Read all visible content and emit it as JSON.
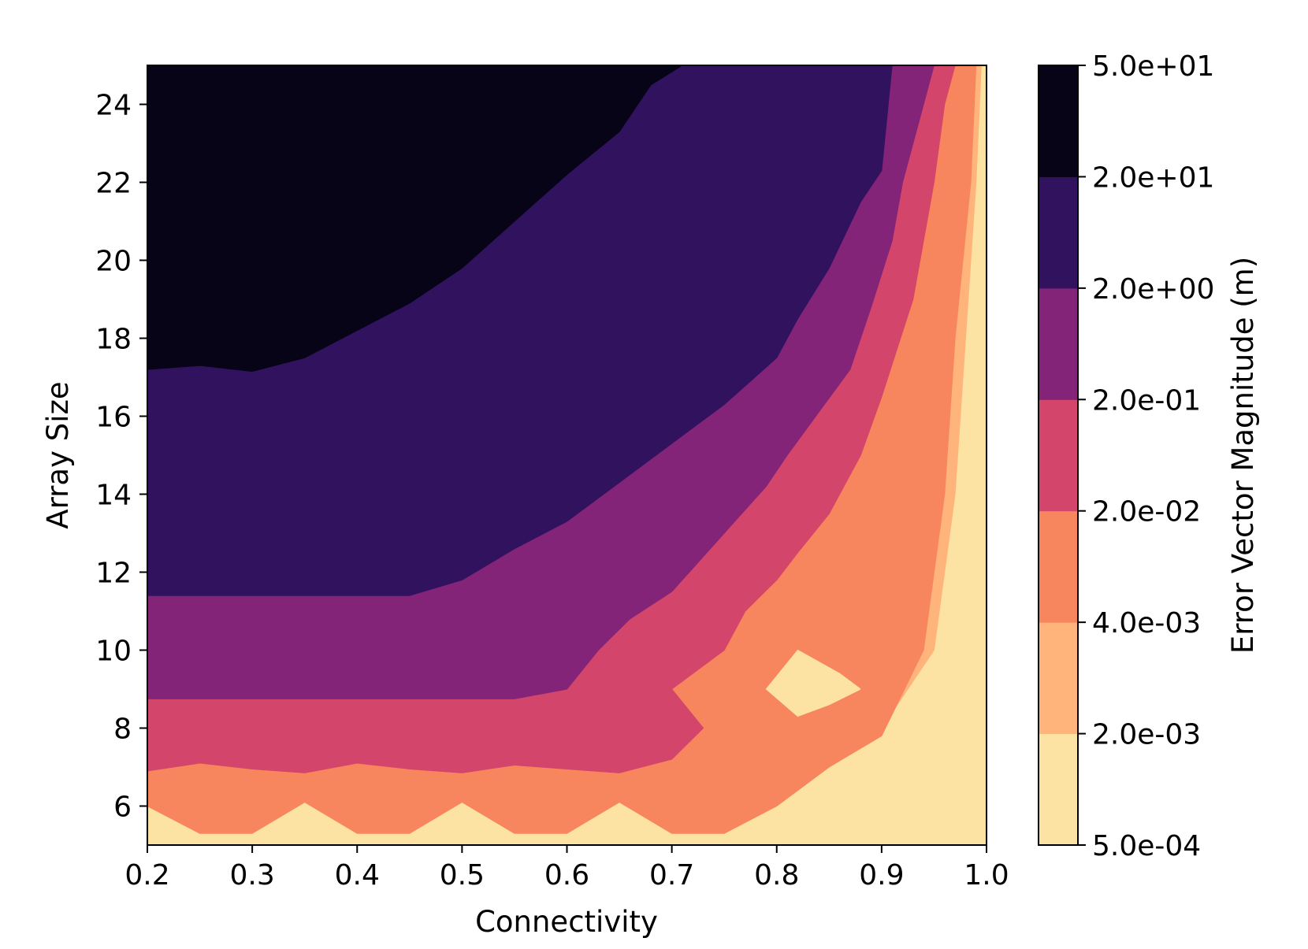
{
  "chart_data": {
    "type": "contour",
    "xlabel": "Connectivity",
    "ylabel": "Array Size",
    "xlim": [
      0.2,
      1.0
    ],
    "ylim": [
      5,
      25
    ],
    "x_ticks": [
      "0.2",
      "0.3",
      "0.4",
      "0.5",
      "0.6",
      "0.7",
      "0.8",
      "0.9",
      "1.0"
    ],
    "y_ticks": [
      "6",
      "8",
      "10",
      "12",
      "14",
      "16",
      "18",
      "20",
      "22",
      "24"
    ],
    "colorbar": {
      "label": "Error Vector Magnitude (m)",
      "levels": [
        "5.0e-04",
        "2.0e-03",
        "4.0e-03",
        "2.0e-02",
        "2.0e-01",
        "2.0e+00",
        "2.0e+01",
        "5.0e+01"
      ],
      "colors": [
        "#fde3a3",
        "#feb47b",
        "#f7865e",
        "#d4456b",
        "#842478",
        "#31125f",
        "#060416"
      ]
    },
    "regions": [
      {
        "level_range": [
          "5.0e-04",
          "2.0e-03"
        ],
        "color": "#fde3a3",
        "outline": [
          [
            0.2,
            5
          ],
          [
            1.0,
            5
          ],
          [
            1.0,
            25
          ],
          [
            0.2,
            25
          ]
        ]
      },
      {
        "level_range": [
          "2.0e-03",
          "4.0e-03"
        ],
        "color": "#feb47b",
        "outline": [
          [
            0.2,
            25
          ],
          [
            0.2,
            6.3
          ],
          [
            0.25,
            5.5
          ],
          [
            0.3,
            5.5
          ],
          [
            0.35,
            6.3
          ],
          [
            0.4,
            5.5
          ],
          [
            0.45,
            5.5
          ],
          [
            0.5,
            6.3
          ],
          [
            0.55,
            5.5
          ],
          [
            0.6,
            5.5
          ],
          [
            0.65,
            6.3
          ],
          [
            0.7,
            5.5
          ],
          [
            0.75,
            5.5
          ],
          [
            0.8,
            6.2
          ],
          [
            0.85,
            7.2
          ],
          [
            0.9,
            8.0
          ],
          [
            0.95,
            10
          ],
          [
            0.97,
            14
          ],
          [
            0.98,
            18
          ],
          [
            0.99,
            22
          ],
          [
            0.995,
            25
          ]
        ]
      },
      {
        "level_range": [
          "4.0e-03",
          "2.0e-02"
        ],
        "color": "#f7865e",
        "outline": [
          [
            0.2,
            25
          ],
          [
            0.2,
            6.0
          ],
          [
            0.25,
            5.3
          ],
          [
            0.3,
            5.3
          ],
          [
            0.35,
            6.1
          ],
          [
            0.4,
            5.3
          ],
          [
            0.45,
            5.3
          ],
          [
            0.5,
            6.1
          ],
          [
            0.55,
            5.3
          ],
          [
            0.6,
            5.3
          ],
          [
            0.65,
            6.1
          ],
          [
            0.7,
            5.3
          ],
          [
            0.75,
            5.3
          ],
          [
            0.8,
            6.0
          ],
          [
            0.85,
            7.0
          ],
          [
            0.9,
            7.8
          ],
          [
            0.94,
            10
          ],
          [
            0.96,
            14
          ],
          [
            0.97,
            18
          ],
          [
            0.985,
            22
          ],
          [
            0.99,
            25
          ]
        ]
      },
      {
        "level_range": [
          "2.0e-02",
          "2.0e-01"
        ],
        "color": "#d4456b",
        "outline": [
          [
            0.2,
            25
          ],
          [
            0.2,
            6.9
          ],
          [
            0.25,
            7.1
          ],
          [
            0.3,
            6.95
          ],
          [
            0.35,
            6.85
          ],
          [
            0.4,
            7.1
          ],
          [
            0.45,
            6.95
          ],
          [
            0.5,
            6.85
          ],
          [
            0.55,
            7.05
          ],
          [
            0.6,
            6.95
          ],
          [
            0.65,
            6.85
          ],
          [
            0.7,
            7.2
          ],
          [
            0.73,
            8.0
          ],
          [
            0.7,
            9.0
          ],
          [
            0.75,
            10.0
          ],
          [
            0.77,
            11.0
          ],
          [
            0.8,
            11.8
          ],
          [
            0.82,
            12.5
          ],
          [
            0.85,
            13.5
          ],
          [
            0.88,
            15
          ],
          [
            0.9,
            16.5
          ],
          [
            0.93,
            19
          ],
          [
            0.95,
            22
          ],
          [
            0.96,
            24
          ],
          [
            0.97,
            25
          ]
        ]
      },
      {
        "level_range": [
          "2.0e-01",
          "2.0e+00"
        ],
        "color": "#842478",
        "outline": [
          [
            0.2,
            25
          ],
          [
            0.2,
            8.75
          ],
          [
            0.55,
            8.75
          ],
          [
            0.6,
            9.0
          ],
          [
            0.63,
            10.0
          ],
          [
            0.66,
            10.8
          ],
          [
            0.7,
            11.5
          ],
          [
            0.73,
            12.4
          ],
          [
            0.76,
            13.3
          ],
          [
            0.79,
            14.2
          ],
          [
            0.81,
            15.0
          ],
          [
            0.84,
            16.1
          ],
          [
            0.87,
            17.2
          ],
          [
            0.89,
            18.8
          ],
          [
            0.91,
            20.5
          ],
          [
            0.92,
            22
          ],
          [
            0.94,
            24
          ],
          [
            0.95,
            25
          ]
        ]
      },
      {
        "level_range": [
          "2.0e+00",
          "2.0e+01"
        ],
        "color": "#31125f",
        "outline": [
          [
            0.2,
            25
          ],
          [
            0.2,
            11.4
          ],
          [
            0.45,
            11.4
          ],
          [
            0.5,
            11.8
          ],
          [
            0.55,
            12.6
          ],
          [
            0.6,
            13.3
          ],
          [
            0.65,
            14.3
          ],
          [
            0.7,
            15.3
          ],
          [
            0.75,
            16.3
          ],
          [
            0.8,
            17.5
          ],
          [
            0.82,
            18.5
          ],
          [
            0.85,
            19.8
          ],
          [
            0.88,
            21.5
          ],
          [
            0.9,
            22.3
          ],
          [
            0.91,
            25
          ]
        ]
      },
      {
        "level_range": [
          "2.0e+01",
          "5.0e+01"
        ],
        "color": "#060416",
        "outline": [
          [
            0.2,
            25
          ],
          [
            0.2,
            17.2
          ],
          [
            0.25,
            17.3
          ],
          [
            0.3,
            17.15
          ],
          [
            0.35,
            17.5
          ],
          [
            0.4,
            18.2
          ],
          [
            0.45,
            18.9
          ],
          [
            0.5,
            19.8
          ],
          [
            0.55,
            21.0
          ],
          [
            0.6,
            22.2
          ],
          [
            0.65,
            23.3
          ],
          [
            0.68,
            24.5
          ],
          [
            0.71,
            25
          ]
        ]
      },
      {
        "level_range": [
          "5.0e-04",
          "2.0e-03"
        ],
        "color": "#fde3a3",
        "outline": [
          [
            0.79,
            9.0
          ],
          [
            0.82,
            8.3
          ],
          [
            0.85,
            8.6
          ],
          [
            0.88,
            9.0
          ],
          [
            0.86,
            9.4
          ],
          [
            0.82,
            10.0
          ]
        ]
      },
      {
        "level_range": [
          "4.0e-03",
          "2.0e-02"
        ],
        "color": "#f7865e",
        "outline": [
          [
            0.88,
            9.0
          ],
          [
            0.9,
            9.4
          ],
          [
            0.92,
            9.0
          ],
          [
            0.9,
            8.7
          ]
        ]
      },
      {
        "level_range": [
          "4.0e-03",
          "2.0e-02"
        ],
        "color": "#f7865e",
        "outline": [
          [
            0.83,
            8.0
          ],
          [
            0.85,
            8.25
          ],
          [
            0.865,
            8.0
          ],
          [
            0.85,
            7.8
          ]
        ]
      }
    ]
  }
}
